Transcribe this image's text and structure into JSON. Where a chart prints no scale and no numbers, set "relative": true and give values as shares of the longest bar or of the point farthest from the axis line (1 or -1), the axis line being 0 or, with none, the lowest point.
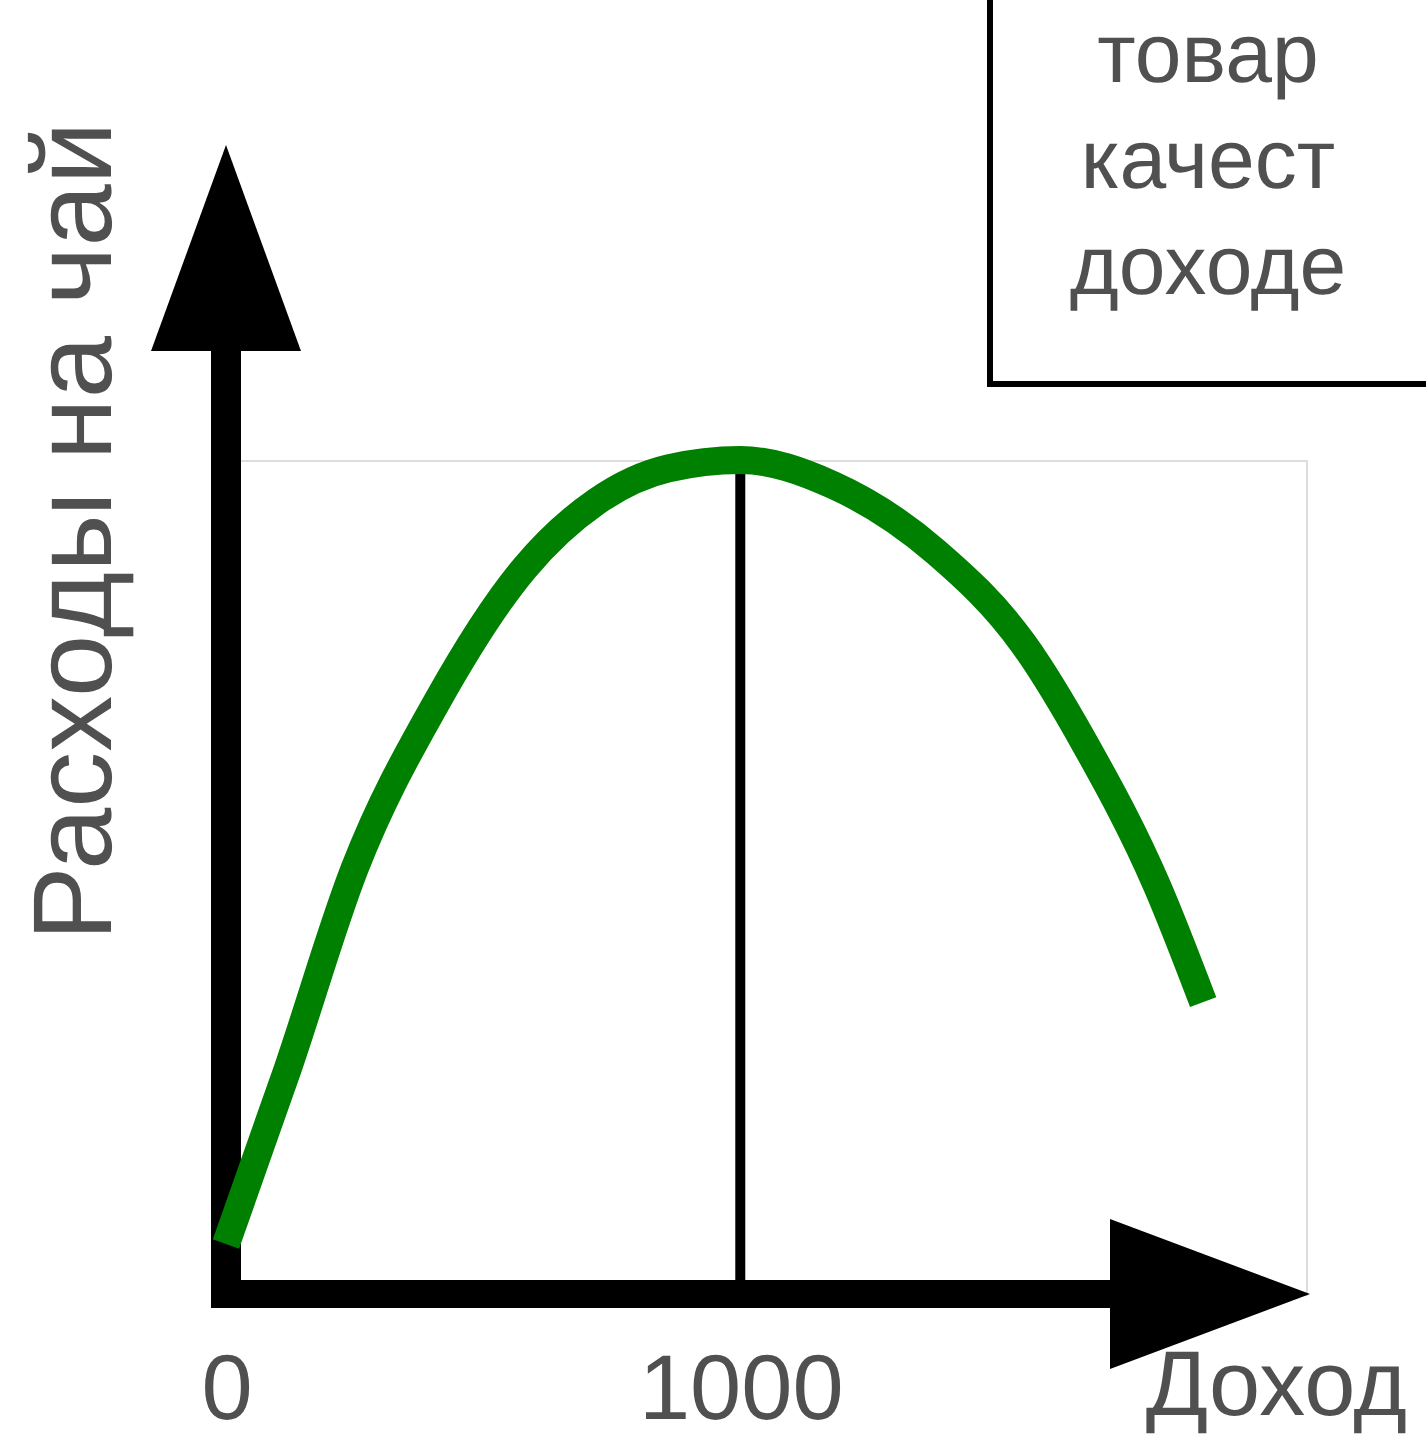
{
  "chart_data": {
    "type": "line",
    "xlabel": "Доход",
    "ylabel": "Расходы на чай",
    "annotations": [
      "товар\nкачест\nдоходе"
    ],
    "x": [
      0,
      120,
      250,
      410,
      580,
      720,
      860,
      1000,
      1180,
      1380,
      1550,
      1670,
      1810,
      1900
    ],
    "series": [
      {
        "color": "#008000",
        "values": [
          0.06,
          0.27,
          0.51,
          0.71,
          0.87,
          0.95,
          0.99,
          1,
          0.97,
          0.89,
          0.78,
          0.66,
          0.49,
          0.35
        ]
      }
    ],
    "relative": true,
    "xlim": [
      0,
      2100
    ],
    "xticks": [
      0,
      1000
    ],
    "ref_lines": [
      {
        "axis": "x",
        "value": 1000,
        "color": "#000000"
      }
    ]
  }
}
